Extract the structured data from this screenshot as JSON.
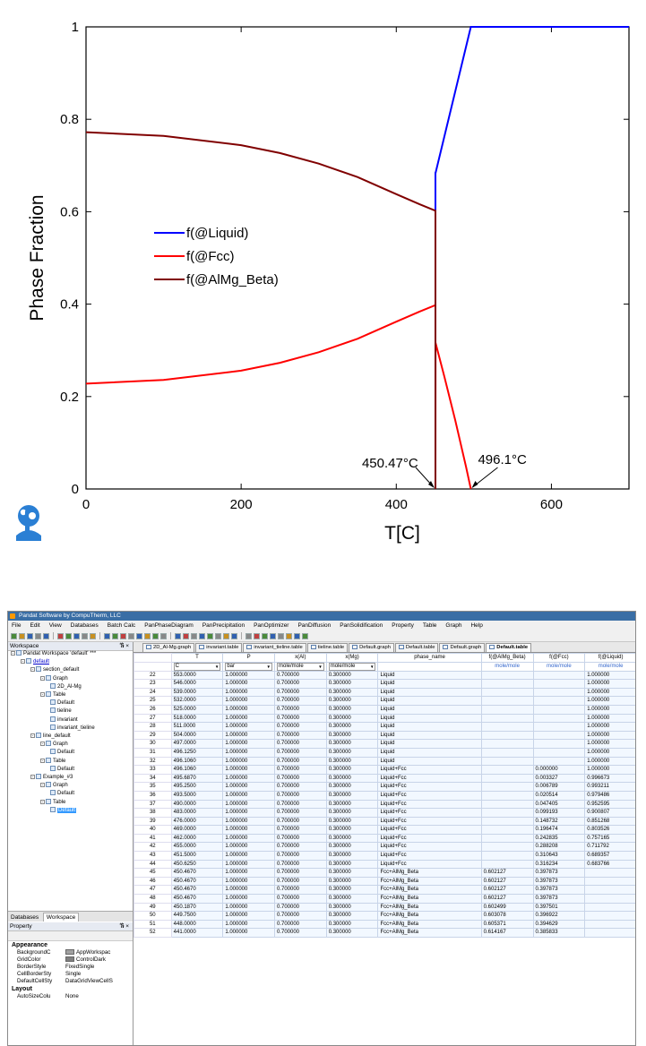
{
  "chart_data": {
    "type": "line",
    "title": "",
    "xlabel": "T[C]",
    "ylabel": "Phase Fraction",
    "xlim": [
      0,
      700
    ],
    "ylim": [
      0,
      1
    ],
    "xticks": [
      0,
      200,
      400,
      600
    ],
    "yticks": [
      0,
      0.2,
      0.4,
      0.6,
      0.8,
      1
    ],
    "xticklabels": [
      "0",
      "200",
      "400",
      "600"
    ],
    "yticklabels": [
      "0",
      "0.2",
      "0.4",
      "0.6",
      "0.8",
      "1"
    ],
    "grid": false,
    "legend_position": "center-left",
    "series": [
      {
        "name": "f(@Liquid)",
        "color": "#0000ff",
        "x": [
          450.467,
          450.467,
          450.625,
          496.106,
          496.125,
          700
        ],
        "y": [
          0,
          0.6838,
          0.6838,
          1,
          1,
          1
        ]
      },
      {
        "name": "f(@Fcc)",
        "color": "#ff0000",
        "x": [
          0,
          100,
          200,
          250,
          300,
          350,
          400,
          430,
          450.467,
          450.467,
          450.625,
          462,
          476,
          490,
          496.106
        ],
        "y": [
          0.228,
          0.236,
          0.256,
          0.273,
          0.296,
          0.325,
          0.362,
          0.384,
          0.3979,
          0,
          0.3162,
          0.2429,
          0.1487,
          0.0475,
          0
        ]
      },
      {
        "name": "f(@AlMg_Beta)",
        "color": "#800000",
        "x": [
          0,
          100,
          200,
          250,
          300,
          350,
          400,
          430,
          450.467,
          450.467
        ],
        "y": [
          0.772,
          0.764,
          0.744,
          0.727,
          0.704,
          0.675,
          0.638,
          0.616,
          0.6021,
          0
        ]
      }
    ],
    "annotations": [
      {
        "text": "450.47°C",
        "x": 450.47,
        "y": 0
      },
      {
        "text": "496.1°C",
        "x": 496.1,
        "y": 0
      }
    ]
  },
  "app": {
    "title": "Pandat Software by CompuTherm, LLC",
    "menu": [
      "File",
      "Edit",
      "View",
      "Databases",
      "Batch Calc",
      "PanPhaseDiagram",
      "PanPrecipitation",
      "PanOptimizer",
      "PanDiffusion",
      "PanSolidification",
      "Property",
      "Table",
      "Graph",
      "Help"
    ],
    "workspace_header": "Workspace",
    "pin": "ⷐ ×",
    "tree": [
      {
        "label": "Pandat Workspace 'default' ***",
        "level": 0,
        "icon": "workspace-icon"
      },
      {
        "label": "default",
        "level": 1,
        "icon": "project-icon",
        "link": true
      },
      {
        "label": "section_default",
        "level": 2,
        "icon": "section-icon"
      },
      {
        "label": "Graph",
        "level": 3,
        "icon": "graph-folder-icon"
      },
      {
        "label": "2D_Al-Mg",
        "level": 4,
        "icon": "graph-icon"
      },
      {
        "label": "Table",
        "level": 3,
        "icon": "table-folder-icon"
      },
      {
        "label": "Default",
        "level": 4,
        "icon": "table-icon"
      },
      {
        "label": "tieline",
        "level": 4,
        "icon": "table-icon"
      },
      {
        "label": "invariant",
        "level": 4,
        "icon": "table-icon"
      },
      {
        "label": "invariant_tieline",
        "level": 4,
        "icon": "table-icon"
      },
      {
        "label": "line_default",
        "level": 2,
        "icon": "line-icon"
      },
      {
        "label": "Graph",
        "level": 3,
        "icon": "graph-folder-icon"
      },
      {
        "label": "Default",
        "level": 4,
        "icon": "graph-icon"
      },
      {
        "label": "Table",
        "level": 3,
        "icon": "table-folder-icon"
      },
      {
        "label": "Default",
        "level": 4,
        "icon": "table-icon"
      },
      {
        "label": "Example_#3",
        "level": 2,
        "icon": "line-icon"
      },
      {
        "label": "Graph",
        "level": 3,
        "icon": "graph-folder-icon"
      },
      {
        "label": "Default",
        "level": 4,
        "icon": "graph-icon"
      },
      {
        "label": "Table",
        "level": 3,
        "icon": "table-folder-icon"
      },
      {
        "label": "Default",
        "level": 4,
        "icon": "table-icon",
        "selected": true
      }
    ],
    "bottom_tabs": [
      "Databases",
      "Workspace"
    ],
    "property": {
      "header": "Property",
      "groups": [
        {
          "name": "Appearance",
          "rows": [
            {
              "name": "BackgroundC",
              "value": "AppWorkspac",
              "swatch": "#a0a0a0"
            },
            {
              "name": "GridColor",
              "value": "ControlDark",
              "swatch": "#808080"
            },
            {
              "name": "BorderStyle",
              "value": "FixedSingle"
            },
            {
              "name": "CellBorderSty",
              "value": "Single"
            },
            {
              "name": "DefaultCellSty",
              "value": "DataGridViewCellS"
            }
          ]
        },
        {
          "name": "Layout",
          "rows": [
            {
              "name": "AutoSizeColu",
              "value": "None"
            }
          ]
        }
      ]
    },
    "doc_tabs": [
      "2D_Al-Mg.graph",
      "invariant.table",
      "invariant_tieline.table",
      "tieline.table",
      "Default.graph",
      "Default.table",
      "Default.graph",
      "Default.table"
    ],
    "table": {
      "headers": [
        "T",
        "P",
        "x(Al)",
        "x(Mg)",
        "phase_name",
        "f(@AlMg_Beta)",
        "f(@Fcc)",
        "f(@Liquid)"
      ],
      "units": [
        "C",
        "bar",
        "mole/mole",
        "mole/mole",
        "",
        "mole/mole",
        "mole/mole",
        "mole/mole"
      ],
      "rows": [
        [
          "22",
          "553.0000",
          "1.000000",
          "0.700000",
          "0.300000",
          "Liquid",
          "",
          "",
          "1.000000"
        ],
        [
          "23",
          "546.0000",
          "1.000000",
          "0.700000",
          "0.300000",
          "Liquid",
          "",
          "",
          "1.000000"
        ],
        [
          "24",
          "539.0000",
          "1.000000",
          "0.700000",
          "0.300000",
          "Liquid",
          "",
          "",
          "1.000000"
        ],
        [
          "25",
          "532.0000",
          "1.000000",
          "0.700000",
          "0.300000",
          "Liquid",
          "",
          "",
          "1.000000"
        ],
        [
          "26",
          "525.0000",
          "1.000000",
          "0.700000",
          "0.300000",
          "Liquid",
          "",
          "",
          "1.000000"
        ],
        [
          "27",
          "518.0000",
          "1.000000",
          "0.700000",
          "0.300000",
          "Liquid",
          "",
          "",
          "1.000000"
        ],
        [
          "28",
          "511.0000",
          "1.000000",
          "0.700000",
          "0.300000",
          "Liquid",
          "",
          "",
          "1.000000"
        ],
        [
          "29",
          "504.0000",
          "1.000000",
          "0.700000",
          "0.300000",
          "Liquid",
          "",
          "",
          "1.000000"
        ],
        [
          "30",
          "497.0000",
          "1.000000",
          "0.700000",
          "0.300000",
          "Liquid",
          "",
          "",
          "1.000000"
        ],
        [
          "31",
          "496.1250",
          "1.000000",
          "0.700000",
          "0.300000",
          "Liquid",
          "",
          "",
          "1.000000"
        ],
        [
          "32",
          "496.1060",
          "1.000000",
          "0.700000",
          "0.300000",
          "Liquid",
          "",
          "",
          "1.000000"
        ],
        [
          "33",
          "496.1060",
          "1.000000",
          "0.700000",
          "0.300000",
          "Liquid+Fcc",
          "",
          "0.000000",
          "1.000000"
        ],
        [
          "34",
          "495.6870",
          "1.000000",
          "0.700000",
          "0.300000",
          "Liquid+Fcc",
          "",
          "0.003327",
          "0.996673"
        ],
        [
          "35",
          "495.2500",
          "1.000000",
          "0.700000",
          "0.300000",
          "Liquid+Fcc",
          "",
          "0.006789",
          "0.993211"
        ],
        [
          "36",
          "493.5000",
          "1.000000",
          "0.700000",
          "0.300000",
          "Liquid+Fcc",
          "",
          "0.020514",
          "0.979486"
        ],
        [
          "37",
          "490.0000",
          "1.000000",
          "0.700000",
          "0.300000",
          "Liquid+Fcc",
          "",
          "0.047405",
          "0.952595"
        ],
        [
          "38",
          "483.0000",
          "1.000000",
          "0.700000",
          "0.300000",
          "Liquid+Fcc",
          "",
          "0.099193",
          "0.900807"
        ],
        [
          "39",
          "476.0000",
          "1.000000",
          "0.700000",
          "0.300000",
          "Liquid+Fcc",
          "",
          "0.148732",
          "0.851268"
        ],
        [
          "40",
          "469.0000",
          "1.000000",
          "0.700000",
          "0.300000",
          "Liquid+Fcc",
          "",
          "0.196474",
          "0.803526"
        ],
        [
          "41",
          "462.0000",
          "1.000000",
          "0.700000",
          "0.300000",
          "Liquid+Fcc",
          "",
          "0.242835",
          "0.757165"
        ],
        [
          "42",
          "455.0000",
          "1.000000",
          "0.700000",
          "0.300000",
          "Liquid+Fcc",
          "",
          "0.288208",
          "0.711792"
        ],
        [
          "43",
          "451.5000",
          "1.000000",
          "0.700000",
          "0.300000",
          "Liquid+Fcc",
          "",
          "0.310643",
          "0.689357"
        ],
        [
          "44",
          "450.6250",
          "1.000000",
          "0.700000",
          "0.300000",
          "Liquid+Fcc",
          "",
          "0.316234",
          "0.683766"
        ],
        [
          "45",
          "450.4670",
          "1.000000",
          "0.700000",
          "0.300000",
          "Fcc+AlMg_Beta",
          "0.602127",
          "0.397873",
          ""
        ],
        [
          "46",
          "450.4670",
          "1.000000",
          "0.700000",
          "0.300000",
          "Fcc+AlMg_Beta",
          "0.602127",
          "0.397873",
          ""
        ],
        [
          "47",
          "450.4670",
          "1.000000",
          "0.700000",
          "0.300000",
          "Fcc+AlMg_Beta",
          "0.602127",
          "0.397873",
          ""
        ],
        [
          "48",
          "450.4670",
          "1.000000",
          "0.700000",
          "0.300000",
          "Fcc+AlMg_Beta",
          "0.602127",
          "0.397873",
          ""
        ],
        [
          "49",
          "450.1870",
          "1.000000",
          "0.700000",
          "0.300000",
          "Fcc+AlMg_Beta",
          "0.602499",
          "0.397501",
          ""
        ],
        [
          "50",
          "449.7500",
          "1.000000",
          "0.700000",
          "0.300000",
          "Fcc+AlMg_Beta",
          "0.603078",
          "0.396922",
          ""
        ],
        [
          "51",
          "448.0000",
          "1.000000",
          "0.700000",
          "0.300000",
          "Fcc+AlMg_Beta",
          "0.605371",
          "0.394629",
          ""
        ],
        [
          "52",
          "441.0000",
          "1.000000",
          "0.700000",
          "0.300000",
          "Fcc+AlMg_Beta",
          "0.614167",
          "0.385833",
          ""
        ]
      ]
    }
  }
}
